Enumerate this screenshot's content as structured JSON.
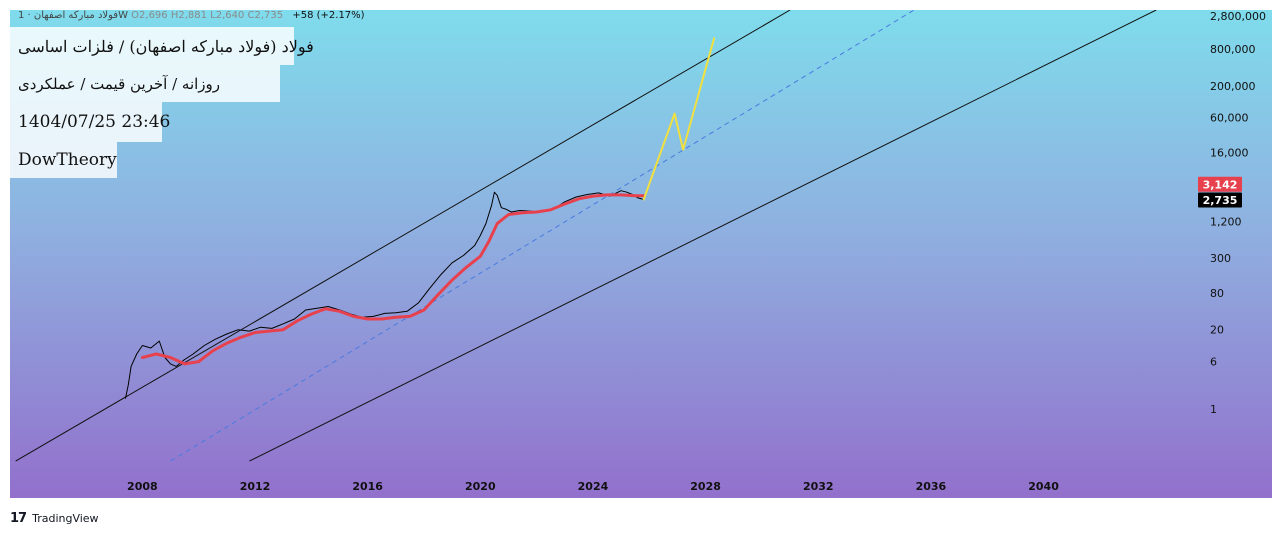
{
  "header": {
    "legend": "فولاد مبارکه اصفهان · 1W",
    "ohlc": "O2,696  H2,881  L2,640  C2,735",
    "change": "+58 (+2.17%)"
  },
  "title_lines": [
    "فولاد (فولاد مبارکه اصفهان) / فلزات اساسی",
    "روزانه / آخرین قیمت / عملکردی",
    "1404/07/25 23:46",
    "DowTheory"
  ],
  "footer": {
    "brand": "TradingView",
    "logo": "tradingview-logo-icon"
  },
  "colors": {
    "background_top": "#7fdcec",
    "background_bottom": "#9270cc",
    "price": "#000000",
    "moving_average": "#e8414e",
    "projection": "#f0e040",
    "channel": "#111111",
    "midline": "#4a7ae0",
    "ma_badge": "#e8414e",
    "price_badge": "#000000"
  },
  "chart_data": {
    "type": "line",
    "y_scale": "log",
    "y_ticks": [
      "2,800,000",
      "800,000",
      "200,000",
      "60,000",
      "16,000",
      "1,200",
      "300",
      "80",
      "20",
      "6",
      "1"
    ],
    "y_tick_values": [
      2800000,
      800000,
      200000,
      60000,
      16000,
      1200,
      300,
      80,
      20,
      6,
      1
    ],
    "x_ticks": [
      "2008",
      "2012",
      "2016",
      "2020",
      "2024",
      "2028",
      "2032",
      "2036",
      "2040"
    ],
    "x_tick_values": [
      2008,
      2012,
      2016,
      2020,
      2024,
      2028,
      2032,
      2036,
      2040
    ],
    "xlim": [
      2003.3,
      2045.2
    ],
    "ylim": [
      0.1,
      3500000
    ],
    "badges": [
      {
        "label": "3,142",
        "value": 3142,
        "color": "#e8414e"
      },
      {
        "label": "2,735",
        "value": 2735,
        "color": "#000000"
      }
    ],
    "series": [
      {
        "role": "price",
        "x": [
          2007.4,
          2007.5,
          2007.6,
          2007.8,
          2008.0,
          2008.3,
          2008.6,
          2008.8,
          2009.0,
          2009.2,
          2009.5,
          2009.8,
          2010.2,
          2010.6,
          2011.0,
          2011.4,
          2011.8,
          2012.2,
          2012.6,
          2013.0,
          2013.4,
          2013.8,
          2014.2,
          2014.6,
          2015.0,
          2015.4,
          2015.8,
          2016.2,
          2016.6,
          2017.0,
          2017.4,
          2017.8,
          2018.2,
          2018.6,
          2019.0,
          2019.4,
          2019.8,
          2020.0,
          2020.2,
          2020.4,
          2020.5,
          2020.6,
          2020.75,
          2020.9,
          2021.1,
          2021.4,
          2021.8,
          2022.2,
          2022.6,
          2023.0,
          2023.4,
          2023.8,
          2024.2,
          2024.6,
          2025.0,
          2025.2,
          2025.4,
          2025.6,
          2025.8
        ],
        "y": [
          1.5,
          2.5,
          5.0,
          8.0,
          11.0,
          10.0,
          13.0,
          7.0,
          5.5,
          5.0,
          6.5,
          8.0,
          11.0,
          14.0,
          17.0,
          20.0,
          19.0,
          22.0,
          21.0,
          25.0,
          30.0,
          42.0,
          45.0,
          48.0,
          42.0,
          36.0,
          32.0,
          33.0,
          37.0,
          38.0,
          40.0,
          55.0,
          95.0,
          160.0,
          250.0,
          330.0,
          480.0,
          700.0,
          1100.0,
          2200.0,
          3600.0,
          3200.0,
          2000.0,
          1900.0,
          1700.0,
          1800.0,
          1750.0,
          1700.0,
          1900.0,
          2500.0,
          3000.0,
          3300.0,
          3500.0,
          3100.0,
          3800.0,
          3600.0,
          3300.0,
          2900.0,
          2735.0
        ]
      },
      {
        "role": "moving_average",
        "x": [
          2008.0,
          2008.5,
          2009.0,
          2009.5,
          2010.0,
          2010.5,
          2011.0,
          2011.5,
          2012.0,
          2012.5,
          2013.0,
          2013.5,
          2014.0,
          2014.5,
          2015.0,
          2015.5,
          2016.0,
          2016.5,
          2017.0,
          2017.5,
          2018.0,
          2018.5,
          2019.0,
          2019.5,
          2020.0,
          2020.3,
          2020.6,
          2021.0,
          2021.5,
          2022.0,
          2022.5,
          2023.0,
          2023.5,
          2024.0,
          2024.5,
          2025.0,
          2025.5,
          2025.8
        ],
        "y": [
          7.0,
          8.0,
          7.0,
          5.5,
          6.0,
          9.0,
          12.0,
          15.0,
          18.0,
          19.0,
          20.0,
          28.0,
          36.0,
          44.0,
          40.0,
          33.0,
          30.0,
          30.0,
          32.0,
          33.0,
          42.0,
          75.0,
          130.0,
          210.0,
          320.0,
          560.0,
          1100.0,
          1550.0,
          1650.0,
          1700.0,
          1850.0,
          2300.0,
          2800.0,
          3100.0,
          3250.0,
          3250.0,
          3150.0,
          3142.0
        ]
      },
      {
        "role": "projection",
        "x": [
          2025.8,
          2026.9,
          2027.2,
          2028.3
        ],
        "y": [
          2735.0,
          70000.0,
          18000.0,
          1200000.0
        ]
      }
    ],
    "channel": {
      "upper": {
        "x": [
          2003.5,
          2031.0
        ],
        "y": [
          0.14,
          3500000
        ]
      },
      "lower": {
        "x": [
          2011.8,
          2044.0
        ],
        "y": [
          0.14,
          3500000
        ]
      },
      "midline": {
        "x": [
          2009.0,
          2035.4
        ],
        "y": [
          0.14,
          3500000
        ]
      }
    }
  }
}
